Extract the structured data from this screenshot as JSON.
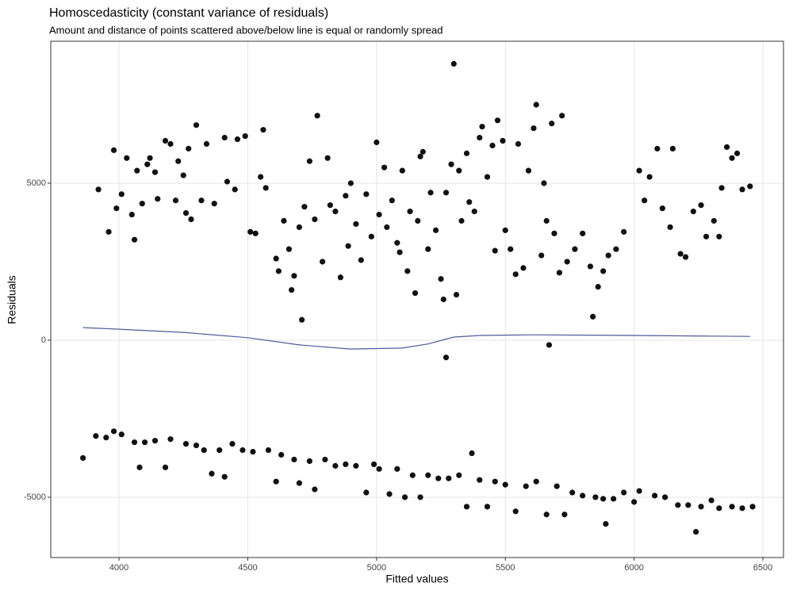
{
  "chart_data": {
    "type": "scatter",
    "title": "Homoscedasticity (constant variance of residuals)",
    "subtitle": "Amount and distance of points scattered above/below line is equal or randomly spread",
    "x_label": "Fitted values",
    "y_label": "Residuals",
    "xlim": [
      3735,
      6580
    ],
    "ylim": [
      -6920,
      9520
    ],
    "xticks": [
      4000,
      4500,
      5000,
      5500,
      6000,
      6500
    ],
    "yticks": [
      -5000,
      0,
      5000
    ],
    "grid": true,
    "series": [
      {
        "type": "scatter",
        "color": "#111111",
        "x": [
          3920,
          3960,
          3980,
          3990,
          4010,
          4030,
          4050,
          4060,
          4070,
          4090,
          4110,
          4120,
          4140,
          4150,
          4180,
          4200,
          4220,
          4230,
          4250,
          4260,
          4270,
          4280,
          4300,
          4320,
          4340,
          4370,
          4410,
          4420,
          4450,
          4460,
          4490,
          4510,
          4530,
          4550,
          4560,
          4570,
          4610,
          4620,
          4640,
          4660,
          4670,
          4680,
          4700,
          4710,
          4720,
          4740,
          4760,
          4770,
          4790,
          4810,
          4820,
          4840,
          4860,
          4880,
          4890,
          4900,
          4920,
          4940,
          4960,
          4980,
          5000,
          5010,
          5030,
          5040,
          5060,
          5080,
          5090,
          5100,
          5120,
          5130,
          5150,
          5160,
          5170,
          5180,
          5200,
          5210,
          5230,
          5250,
          5260,
          5270,
          5290,
          5300,
          5310,
          5320,
          5330,
          5350,
          5360,
          5380,
          5400,
          5410,
          5430,
          5450,
          5460,
          5470,
          5490,
          5500,
          5520,
          5540,
          5550,
          5570,
          5590,
          5610,
          5620,
          5640,
          5650,
          5660,
          5670,
          5680,
          5690,
          5710,
          5720,
          5740,
          5770,
          5800,
          5830,
          5840,
          5860,
          5880,
          5900,
          5930,
          5960,
          6020,
          6040,
          6060,
          6090,
          6110,
          6140,
          6150,
          6180,
          6200,
          6230,
          6260,
          6280,
          6310,
          6330,
          6340,
          6360,
          6380,
          6400,
          6420,
          6450,
          5270,
          3860,
          3910,
          3950,
          3980,
          4010,
          4060,
          4080,
          4100,
          4140,
          4180,
          4200,
          4260,
          4300,
          4330,
          4360,
          4390,
          4410,
          4440,
          4480,
          4520,
          4580,
          4610,
          4630,
          4680,
          4700,
          4740,
          4760,
          4800,
          4840,
          4880,
          4920,
          4960,
          4990,
          5010,
          5050,
          5080,
          5110,
          5140,
          5170,
          5200,
          5240,
          5280,
          5320,
          5350,
          5370,
          5400,
          5430,
          5460,
          5500,
          5540,
          5580,
          5620,
          5660,
          5700,
          5730,
          5760,
          5800,
          5850,
          5880,
          5890,
          5920,
          5960,
          6000,
          6020,
          6080,
          6120,
          6170,
          6210,
          6240,
          6260,
          6300,
          6330,
          6380,
          6420,
          6460
        ],
        "values": [
          4800,
          3450,
          6050,
          4200,
          4650,
          5800,
          4000,
          3200,
          5400,
          4350,
          5600,
          5800,
          5350,
          4500,
          6350,
          6250,
          4450,
          5700,
          5250,
          4050,
          6100,
          3850,
          6850,
          4450,
          6250,
          4350,
          6450,
          5050,
          4800,
          6400,
          6500,
          3450,
          3400,
          5200,
          6700,
          4850,
          2600,
          2200,
          3800,
          2900,
          1600,
          2050,
          3600,
          650,
          4250,
          5700,
          3850,
          7150,
          2500,
          5800,
          4300,
          4100,
          2000,
          4600,
          3000,
          5000,
          3700,
          2550,
          4650,
          3300,
          6300,
          4000,
          5500,
          3600,
          4450,
          3100,
          2800,
          5400,
          2200,
          4100,
          1500,
          3800,
          5850,
          6000,
          2900,
          4700,
          3500,
          1950,
          1300,
          4700,
          5600,
          8800,
          1450,
          5400,
          3800,
          5950,
          4400,
          4100,
          6450,
          6800,
          5200,
          6200,
          2850,
          7000,
          6350,
          3500,
          2900,
          2100,
          6250,
          2300,
          5400,
          6750,
          7500,
          2700,
          5000,
          3800,
          -150,
          6900,
          3400,
          2150,
          7150,
          2500,
          2900,
          3400,
          2350,
          750,
          1700,
          2200,
          2700,
          2900,
          3450,
          5400,
          4450,
          5200,
          6100,
          4200,
          3600,
          6100,
          2750,
          2650,
          4100,
          4300,
          3300,
          3800,
          3300,
          4850,
          6150,
          5800,
          5950,
          4800,
          4900,
          -550,
          -3750,
          -3050,
          -3100,
          -2900,
          -3000,
          -3250,
          -4050,
          -3250,
          -3200,
          -4050,
          -3150,
          -3300,
          -3350,
          -3500,
          -4250,
          -3500,
          -4350,
          -3300,
          -3500,
          -3550,
          -3500,
          -4500,
          -3650,
          -3800,
          -4550,
          -3850,
          -4750,
          -3800,
          -4000,
          -3950,
          -4000,
          -4850,
          -3950,
          -4100,
          -4900,
          -4100,
          -5000,
          -4300,
          -5000,
          -4300,
          -4400,
          -4400,
          -4300,
          -5300,
          -3600,
          -4450,
          -5300,
          -4500,
          -4600,
          -5450,
          -4650,
          -4500,
          -5550,
          -4650,
          -5550,
          -4850,
          -4950,
          -5000,
          -5050,
          -5850,
          -5050,
          -4850,
          -5150,
          -4800,
          -4950,
          -5000,
          -5250,
          -5250,
          -6100,
          -5300,
          -5100,
          -5350,
          -5300,
          -5350,
          -5300
        ]
      },
      {
        "type": "line",
        "color": "#4b5b9b",
        "x": [
          3860,
          4000,
          4250,
          4500,
          4700,
          4900,
          5100,
          5200,
          5300,
          5400,
          5600,
          6000,
          6300,
          6450
        ],
        "values": [
          400,
          350,
          250,
          80,
          -150,
          -280,
          -250,
          -120,
          100,
          150,
          170,
          150,
          130,
          120
        ]
      }
    ]
  }
}
